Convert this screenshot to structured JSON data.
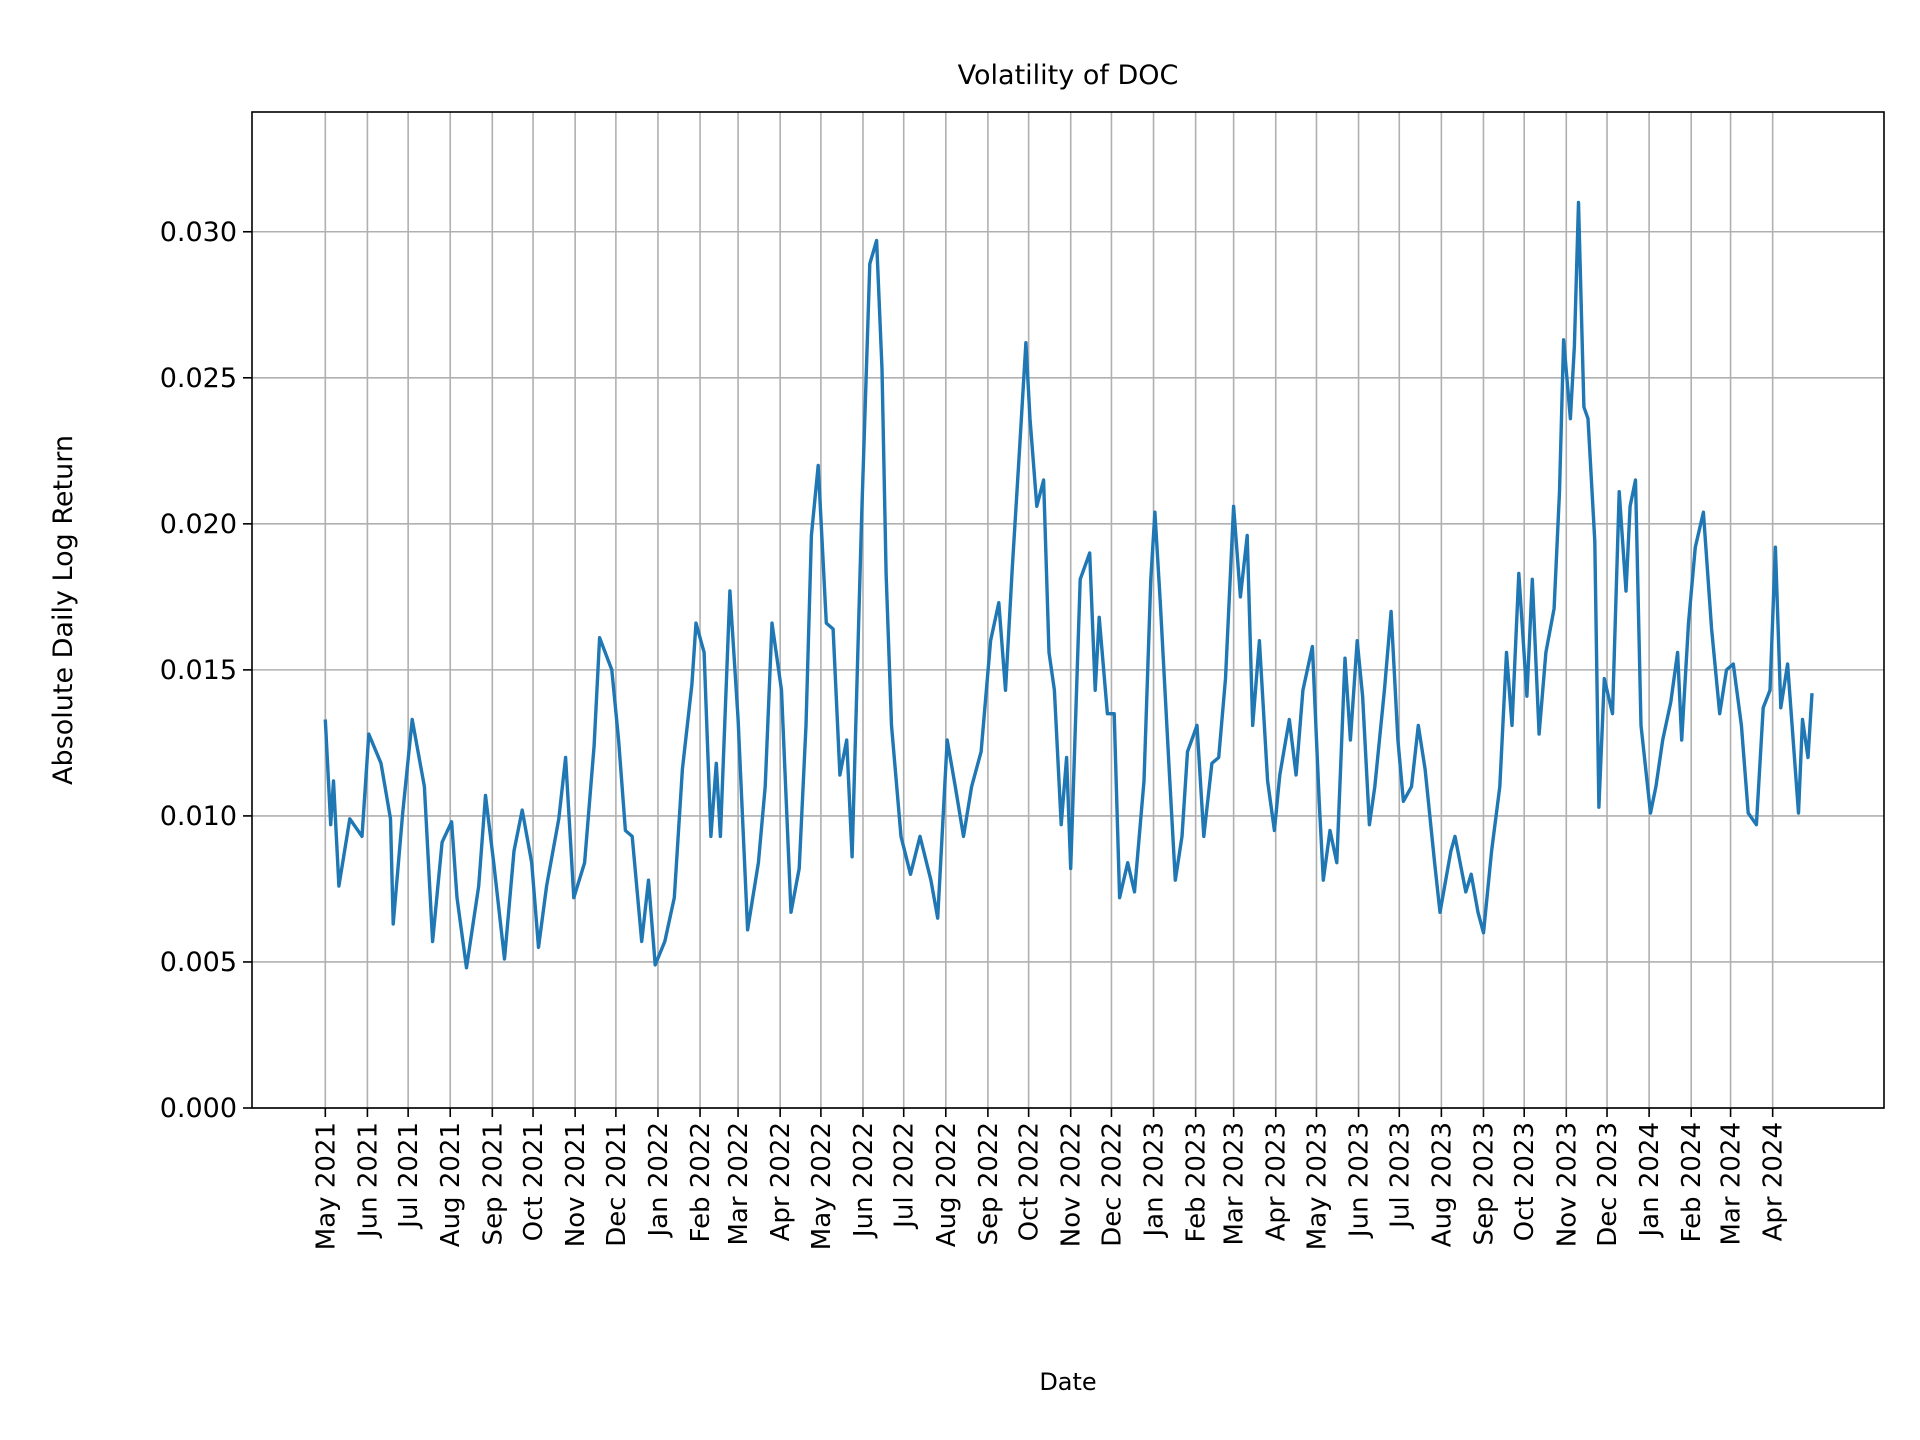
{
  "chart_data": {
    "type": "line",
    "title": "Volatility of DOC",
    "xlabel": "Date",
    "ylabel": "Absolute Daily Log Return",
    "ylim": [
      0,
      0.0341
    ],
    "xlim": [
      "2021-03-08",
      "2024-06-22"
    ],
    "grid": true,
    "line_color": "#1f77b4",
    "grid_color": "#b0b0b0",
    "yticks": [
      0,
      0.005,
      0.01,
      0.015,
      0.02,
      0.025,
      0.03
    ],
    "ytick_labels": [
      "0.000",
      "0.005",
      "0.010",
      "0.015",
      "0.020",
      "0.025",
      "0.030"
    ],
    "xticks": [
      "2021-05-01",
      "2021-06-01",
      "2021-07-01",
      "2021-08-01",
      "2021-09-01",
      "2021-10-01",
      "2021-11-01",
      "2021-12-01",
      "2022-01-01",
      "2022-02-01",
      "2022-03-01",
      "2022-04-01",
      "2022-05-01",
      "2022-06-01",
      "2022-07-01",
      "2022-08-01",
      "2022-09-01",
      "2022-10-01",
      "2022-11-01",
      "2022-12-01",
      "2023-01-01",
      "2023-02-01",
      "2023-03-01",
      "2023-04-01",
      "2023-05-01",
      "2023-06-01",
      "2023-07-01",
      "2023-08-01",
      "2023-09-01",
      "2023-10-01",
      "2023-11-01",
      "2023-12-01",
      "2024-01-01",
      "2024-02-01",
      "2024-03-01",
      "2024-04-01"
    ],
    "xtick_labels": [
      "May 2021",
      "Jun 2021",
      "Jul 2021",
      "Aug 2021",
      "Sep 2021",
      "Oct 2021",
      "Nov 2021",
      "Dec 2021",
      "Jan 2022",
      "Feb 2022",
      "Mar 2022",
      "Apr 2022",
      "May 2022",
      "Jun 2022",
      "Jul 2022",
      "Aug 2022",
      "Sep 2022",
      "Oct 2022",
      "Nov 2022",
      "Dec 2022",
      "Jan 2023",
      "Feb 2023",
      "Mar 2023",
      "Apr 2023",
      "May 2023",
      "Jun 2023",
      "Jul 2023",
      "Aug 2023",
      "Sep 2023",
      "Oct 2023",
      "Nov 2023",
      "Dec 2023",
      "Jan 2024",
      "Feb 2024",
      "Mar 2024",
      "Apr 2024"
    ],
    "x": [
      "2021-05-01",
      "2021-05-05",
      "2021-05-07",
      "2021-05-11",
      "2021-05-19",
      "2021-05-28",
      "2021-06-02",
      "2021-06-11",
      "2021-06-18",
      "2021-06-20",
      "2021-06-27",
      "2021-07-04",
      "2021-07-13",
      "2021-07-19",
      "2021-07-26",
      "2021-08-02",
      "2021-08-06",
      "2021-08-13",
      "2021-08-22",
      "2021-08-27",
      "2021-09-02",
      "2021-09-10",
      "2021-09-17",
      "2021-09-23",
      "2021-09-30",
      "2021-10-05",
      "2021-10-11",
      "2021-10-20",
      "2021-10-25",
      "2021-10-31",
      "2021-11-08",
      "2021-11-15",
      "2021-11-19",
      "2021-11-28",
      "2021-12-03",
      "2021-12-08",
      "2021-12-13",
      "2021-12-20",
      "2021-12-25",
      "2021-12-30",
      "2022-01-06",
      "2022-01-13",
      "2022-01-19",
      "2022-01-26",
      "2022-01-29",
      "2022-02-04",
      "2022-02-09",
      "2022-02-13",
      "2022-02-16",
      "2022-02-23",
      "2022-03-01",
      "2022-03-08",
      "2022-03-16",
      "2022-03-21",
      "2022-03-26",
      "2022-04-02",
      "2022-04-09",
      "2022-04-15",
      "2022-04-20",
      "2022-04-24",
      "2022-04-29",
      "2022-05-05",
      "2022-05-10",
      "2022-05-15",
      "2022-05-20",
      "2022-05-24",
      "2022-05-31",
      "2022-06-06",
      "2022-06-11",
      "2022-06-15",
      "2022-06-18",
      "2022-06-22",
      "2022-06-29",
      "2022-07-06",
      "2022-07-13",
      "2022-07-21",
      "2022-07-26",
      "2022-08-02",
      "2022-08-08",
      "2022-08-14",
      "2022-08-20",
      "2022-08-27",
      "2022-09-03",
      "2022-09-09",
      "2022-09-14",
      "2022-09-19",
      "2022-09-24",
      "2022-09-29",
      "2022-10-02",
      "2022-10-07",
      "2022-10-12",
      "2022-10-16",
      "2022-10-20",
      "2022-10-25",
      "2022-10-29",
      "2022-11-01",
      "2022-11-08",
      "2022-11-15",
      "2022-11-19",
      "2022-11-22",
      "2022-11-28",
      "2022-12-03",
      "2022-12-07",
      "2022-12-13",
      "2022-12-18",
      "2022-12-25",
      "2022-12-30",
      "2023-01-02",
      "2023-01-06",
      "2023-01-13",
      "2023-01-17",
      "2023-01-22",
      "2023-01-26",
      "2023-02-02",
      "2023-02-07",
      "2023-02-13",
      "2023-02-18",
      "2023-02-23",
      "2023-03-01",
      "2023-03-06",
      "2023-03-11",
      "2023-03-15",
      "2023-03-20",
      "2023-03-26",
      "2023-03-31",
      "2023-04-04",
      "2023-04-11",
      "2023-04-16",
      "2023-04-21",
      "2023-04-28",
      "2023-05-03",
      "2023-05-06",
      "2023-05-11",
      "2023-05-16",
      "2023-05-22",
      "2023-05-26",
      "2023-05-31",
      "2023-06-04",
      "2023-06-09",
      "2023-06-13",
      "2023-06-20",
      "2023-06-25",
      "2023-06-30",
      "2023-07-04",
      "2023-07-10",
      "2023-07-15",
      "2023-07-20",
      "2023-07-27",
      "2023-07-31",
      "2023-08-08",
      "2023-08-11",
      "2023-08-19",
      "2023-08-23",
      "2023-08-28",
      "2023-09-01",
      "2023-09-07",
      "2023-09-13",
      "2023-09-18",
      "2023-09-22",
      "2023-09-27",
      "2023-10-03",
      "2023-10-07",
      "2023-10-12",
      "2023-10-17",
      "2023-10-23",
      "2023-10-27",
      "2023-10-30",
      "2023-11-04",
      "2023-11-07",
      "2023-11-10",
      "2023-11-14",
      "2023-11-17",
      "2023-11-22",
      "2023-11-25",
      "2023-11-29",
      "2023-12-05",
      "2023-12-10",
      "2023-12-15",
      "2023-12-18",
      "2023-12-22",
      "2023-12-26",
      "2024-01-02",
      "2024-01-06",
      "2024-01-11",
      "2024-01-17",
      "2024-01-22",
      "2024-01-25",
      "2024-01-30",
      "2024-02-04",
      "2024-02-10",
      "2024-02-16",
      "2024-02-22",
      "2024-02-27",
      "2024-03-03",
      "2024-03-09",
      "2024-03-14",
      "2024-03-20",
      "2024-03-25",
      "2024-03-30",
      "2024-04-03",
      "2024-04-07",
      "2024-04-12",
      "2024-04-20",
      "2024-04-23",
      "2024-04-27",
      "2024-04-30"
    ],
    "y": [
      0.0133,
      0.0097,
      0.0112,
      0.0076,
      0.0099,
      0.0093,
      0.0128,
      0.0118,
      0.0099,
      0.0063,
      0.0101,
      0.0133,
      0.011,
      0.0057,
      0.0091,
      0.0098,
      0.0072,
      0.0048,
      0.0076,
      0.0107,
      0.0084,
      0.0051,
      0.0088,
      0.0102,
      0.0084,
      0.0055,
      0.0076,
      0.0099,
      0.012,
      0.0072,
      0.0084,
      0.0124,
      0.0161,
      0.015,
      0.0126,
      0.0095,
      0.0093,
      0.0057,
      0.0078,
      0.0049,
      0.0057,
      0.0072,
      0.0116,
      0.0145,
      0.0166,
      0.0156,
      0.0093,
      0.0118,
      0.0093,
      0.0177,
      0.0133,
      0.0061,
      0.0084,
      0.011,
      0.0166,
      0.0143,
      0.0067,
      0.0082,
      0.0131,
      0.0196,
      0.022,
      0.0166,
      0.0164,
      0.0114,
      0.0126,
      0.0086,
      0.0202,
      0.0289,
      0.0297,
      0.0253,
      0.0183,
      0.0131,
      0.0093,
      0.008,
      0.0093,
      0.0078,
      0.0065,
      0.0126,
      0.011,
      0.0093,
      0.011,
      0.0122,
      0.016,
      0.0173,
      0.0143,
      0.0185,
      0.0223,
      0.0262,
      0.0236,
      0.0206,
      0.0215,
      0.0156,
      0.0143,
      0.0097,
      0.012,
      0.0082,
      0.0181,
      0.019,
      0.0143,
      0.0168,
      0.0135,
      0.0135,
      0.0072,
      0.0084,
      0.0074,
      0.0112,
      0.0181,
      0.0204,
      0.0173,
      0.0112,
      0.0078,
      0.0093,
      0.0122,
      0.0131,
      0.0093,
      0.0118,
      0.012,
      0.0147,
      0.0206,
      0.0175,
      0.0196,
      0.0131,
      0.016,
      0.0112,
      0.0095,
      0.0114,
      0.0133,
      0.0114,
      0.0143,
      0.0158,
      0.0105,
      0.0078,
      0.0095,
      0.0084,
      0.0154,
      0.0126,
      0.016,
      0.0141,
      0.0097,
      0.011,
      0.0143,
      0.017,
      0.0126,
      0.0105,
      0.011,
      0.0131,
      0.0116,
      0.0084,
      0.0067,
      0.0088,
      0.0093,
      0.0074,
      0.008,
      0.0067,
      0.006,
      0.0088,
      0.011,
      0.0156,
      0.0131,
      0.0183,
      0.0141,
      0.0181,
      0.0128,
      0.0156,
      0.0171,
      0.0211,
      0.0263,
      0.0236,
      0.0261,
      0.031,
      0.024,
      0.0236,
      0.0194,
      0.0103,
      0.0147,
      0.0135,
      0.0211,
      0.0177,
      0.0206,
      0.0215,
      0.0131,
      0.0101,
      0.011,
      0.0126,
      0.0139,
      0.0156,
      0.0126,
      0.0166,
      0.0192,
      0.0204,
      0.0164,
      0.0135,
      0.015,
      0.0152,
      0.0131,
      0.0101,
      0.0097,
      0.0137,
      0.0143,
      0.0192,
      0.0137,
      0.0152,
      0.0101,
      0.0133,
      0.012,
      0.0142
    ]
  }
}
